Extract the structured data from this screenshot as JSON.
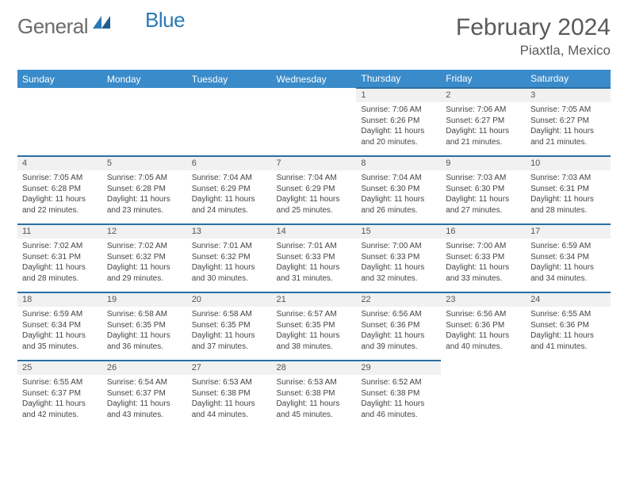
{
  "logo": {
    "part1": "General",
    "part2": "Blue"
  },
  "title": "February 2024",
  "location": "Piaxtla, Mexico",
  "colors": {
    "header_bg": "#3a8bc9",
    "row_divider": "#2a6ea3",
    "daynum_bg": "#f1f1f1",
    "page_bg": "#ffffff",
    "logo_gray": "#6b6b6b",
    "logo_blue": "#2a7ab8"
  },
  "typography": {
    "title_fontsize": 30,
    "location_fontsize": 17,
    "header_fontsize": 12,
    "cell_fontsize": 10
  },
  "days_of_week": [
    "Sunday",
    "Monday",
    "Tuesday",
    "Wednesday",
    "Thursday",
    "Friday",
    "Saturday"
  ],
  "weeks": [
    [
      null,
      null,
      null,
      null,
      {
        "n": "1",
        "sr": "7:06 AM",
        "ss": "6:26 PM",
        "dl": "11 hours and 20 minutes."
      },
      {
        "n": "2",
        "sr": "7:06 AM",
        "ss": "6:27 PM",
        "dl": "11 hours and 21 minutes."
      },
      {
        "n": "3",
        "sr": "7:05 AM",
        "ss": "6:27 PM",
        "dl": "11 hours and 21 minutes."
      }
    ],
    [
      {
        "n": "4",
        "sr": "7:05 AM",
        "ss": "6:28 PM",
        "dl": "11 hours and 22 minutes."
      },
      {
        "n": "5",
        "sr": "7:05 AM",
        "ss": "6:28 PM",
        "dl": "11 hours and 23 minutes."
      },
      {
        "n": "6",
        "sr": "7:04 AM",
        "ss": "6:29 PM",
        "dl": "11 hours and 24 minutes."
      },
      {
        "n": "7",
        "sr": "7:04 AM",
        "ss": "6:29 PM",
        "dl": "11 hours and 25 minutes."
      },
      {
        "n": "8",
        "sr": "7:04 AM",
        "ss": "6:30 PM",
        "dl": "11 hours and 26 minutes."
      },
      {
        "n": "9",
        "sr": "7:03 AM",
        "ss": "6:30 PM",
        "dl": "11 hours and 27 minutes."
      },
      {
        "n": "10",
        "sr": "7:03 AM",
        "ss": "6:31 PM",
        "dl": "11 hours and 28 minutes."
      }
    ],
    [
      {
        "n": "11",
        "sr": "7:02 AM",
        "ss": "6:31 PM",
        "dl": "11 hours and 28 minutes."
      },
      {
        "n": "12",
        "sr": "7:02 AM",
        "ss": "6:32 PM",
        "dl": "11 hours and 29 minutes."
      },
      {
        "n": "13",
        "sr": "7:01 AM",
        "ss": "6:32 PM",
        "dl": "11 hours and 30 minutes."
      },
      {
        "n": "14",
        "sr": "7:01 AM",
        "ss": "6:33 PM",
        "dl": "11 hours and 31 minutes."
      },
      {
        "n": "15",
        "sr": "7:00 AM",
        "ss": "6:33 PM",
        "dl": "11 hours and 32 minutes."
      },
      {
        "n": "16",
        "sr": "7:00 AM",
        "ss": "6:33 PM",
        "dl": "11 hours and 33 minutes."
      },
      {
        "n": "17",
        "sr": "6:59 AM",
        "ss": "6:34 PM",
        "dl": "11 hours and 34 minutes."
      }
    ],
    [
      {
        "n": "18",
        "sr": "6:59 AM",
        "ss": "6:34 PM",
        "dl": "11 hours and 35 minutes."
      },
      {
        "n": "19",
        "sr": "6:58 AM",
        "ss": "6:35 PM",
        "dl": "11 hours and 36 minutes."
      },
      {
        "n": "20",
        "sr": "6:58 AM",
        "ss": "6:35 PM",
        "dl": "11 hours and 37 minutes."
      },
      {
        "n": "21",
        "sr": "6:57 AM",
        "ss": "6:35 PM",
        "dl": "11 hours and 38 minutes."
      },
      {
        "n": "22",
        "sr": "6:56 AM",
        "ss": "6:36 PM",
        "dl": "11 hours and 39 minutes."
      },
      {
        "n": "23",
        "sr": "6:56 AM",
        "ss": "6:36 PM",
        "dl": "11 hours and 40 minutes."
      },
      {
        "n": "24",
        "sr": "6:55 AM",
        "ss": "6:36 PM",
        "dl": "11 hours and 41 minutes."
      }
    ],
    [
      {
        "n": "25",
        "sr": "6:55 AM",
        "ss": "6:37 PM",
        "dl": "11 hours and 42 minutes."
      },
      {
        "n": "26",
        "sr": "6:54 AM",
        "ss": "6:37 PM",
        "dl": "11 hours and 43 minutes."
      },
      {
        "n": "27",
        "sr": "6:53 AM",
        "ss": "6:38 PM",
        "dl": "11 hours and 44 minutes."
      },
      {
        "n": "28",
        "sr": "6:53 AM",
        "ss": "6:38 PM",
        "dl": "11 hours and 45 minutes."
      },
      {
        "n": "29",
        "sr": "6:52 AM",
        "ss": "6:38 PM",
        "dl": "11 hours and 46 minutes."
      },
      null,
      null
    ]
  ],
  "labels": {
    "sunrise": "Sunrise:",
    "sunset": "Sunset:",
    "daylight": "Daylight:"
  }
}
